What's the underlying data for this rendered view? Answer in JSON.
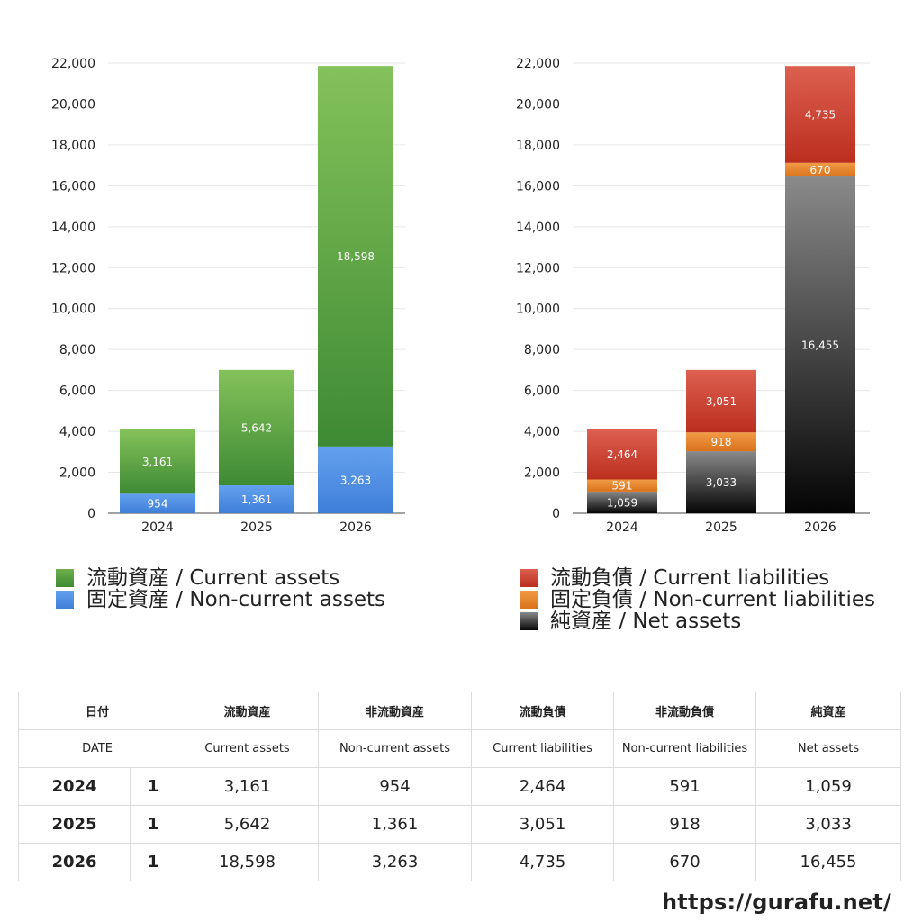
{
  "chart_data": [
    {
      "type": "bar",
      "stacked": true,
      "categories": [
        "2024",
        "2025",
        "2026"
      ],
      "ylim": [
        0,
        22000
      ],
      "yticks": [
        "0",
        "2,000",
        "4,000",
        "6,000",
        "8,000",
        "10,000",
        "12,000",
        "14,000",
        "16,000",
        "18,000",
        "20,000",
        "22,000"
      ],
      "grid": true,
      "series": [
        {
          "name": "固定資産 / Non-current assets",
          "values": [
            954,
            1361,
            3263
          ],
          "labels": [
            "954",
            "1,361",
            "3,263"
          ],
          "color_top": "#63a0ee",
          "color_bottom": "#3f7fd9"
        },
        {
          "name": "流動資産 / Current assets",
          "values": [
            3161,
            5642,
            18598
          ],
          "labels": [
            "3,161",
            "5,642",
            "18,598"
          ],
          "color_top": "#84c25a",
          "color_bottom": "#3e8a34"
        }
      ]
    },
    {
      "type": "bar",
      "stacked": true,
      "categories": [
        "2024",
        "2025",
        "2026"
      ],
      "ylim": [
        0,
        22000
      ],
      "yticks": [
        "0",
        "2,000",
        "4,000",
        "6,000",
        "8,000",
        "10,000",
        "12,000",
        "14,000",
        "16,000",
        "18,000",
        "20,000",
        "22,000"
      ],
      "grid": true,
      "series": [
        {
          "name": "純資産 / Net assets",
          "values": [
            1059,
            3033,
            16455
          ],
          "labels": [
            "1,059",
            "3,033",
            "16,455"
          ],
          "color_top": "#8a8a8a",
          "color_bottom": "#050505"
        },
        {
          "name": "固定負債 / Non-current liabilities",
          "values": [
            591,
            918,
            670
          ],
          "labels": [
            "591",
            "918",
            "670"
          ],
          "color_top": "#f29a45",
          "color_bottom": "#d9731c"
        },
        {
          "name": "流動負債 / Current liabilities",
          "values": [
            2464,
            3051,
            4735
          ],
          "labels": [
            "2,464",
            "3,051",
            "4,735"
          ],
          "color_top": "#dd6050",
          "color_bottom": "#bb2e1e"
        }
      ]
    }
  ],
  "legend_left": [
    {
      "label": "流動資産 / Current assets",
      "color": "#4f9a3c"
    },
    {
      "label": "固定資産 / Non-current assets",
      "color": "#4a86e0"
    }
  ],
  "legend_right": [
    {
      "label": "流動負債 / Current liabilities",
      "color": "#c9412f"
    },
    {
      "label": "固定負債 / Non-current liabilities",
      "color": "#e8842c"
    },
    {
      "label": "純資産 / Net assets",
      "color": "#222222"
    }
  ],
  "table": {
    "header_jp": [
      "日付",
      "流動資産",
      "非流動資産",
      "流動負債",
      "非流動負債",
      "純資産"
    ],
    "header_en": [
      "DATE",
      "Current assets",
      "Non-current assets",
      "Current liabilities",
      "Non-current liabilities",
      "Net assets"
    ],
    "rows": [
      {
        "year": "2024",
        "month": "1",
        "values": [
          "3,161",
          "954",
          "2,464",
          "591",
          "1,059"
        ]
      },
      {
        "year": "2025",
        "month": "1",
        "values": [
          "5,642",
          "1,361",
          "3,051",
          "918",
          "3,033"
        ]
      },
      {
        "year": "2026",
        "month": "1",
        "values": [
          "18,598",
          "3,263",
          "4,735",
          "670",
          "16,455"
        ]
      }
    ]
  },
  "footer": {
    "site": "https://gurafu.net/"
  }
}
